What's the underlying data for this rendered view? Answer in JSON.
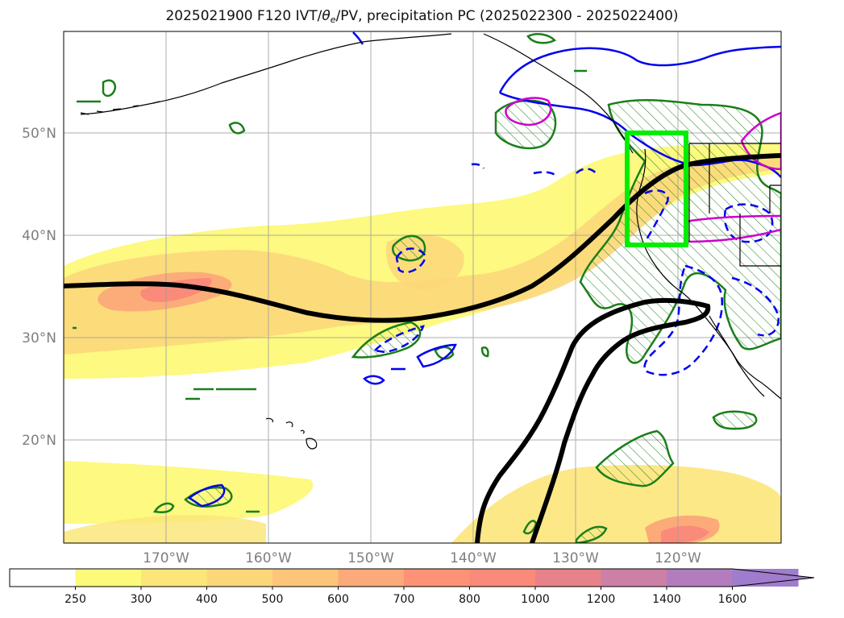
{
  "title": {
    "prefix": "2025021900 F120 IVT/",
    "theta": "θ",
    "theta_sub": "e",
    "suffix": "/PV, precipitation PC (2025022300 - 2025022400)"
  },
  "map": {
    "lat_labels": [
      "50°N",
      "40°N",
      "30°N",
      "20°N"
    ],
    "lon_labels": [
      "170°W",
      "160°W",
      "150°W",
      "140°W",
      "130°W",
      "120°W"
    ],
    "lat_values": [
      50,
      40,
      30,
      20
    ],
    "lon_values": [
      -170,
      -160,
      -150,
      -140,
      -130,
      -120
    ],
    "extent": {
      "lon_min": -180,
      "lon_max": -110,
      "lat_min": 10,
      "lat_max": 60
    },
    "gridlines": true,
    "colors": {
      "grid": "#a0a0a0",
      "coast": "#000000",
      "pv_contour": "#000000",
      "precip_contour": "#1a7f1a",
      "theta_solid": "#0000ee",
      "theta_dashed": "#0000ee",
      "magenta": "#cc00cc",
      "highlight_box": "#00ee00",
      "tick_label": "#7f7f7f"
    }
  },
  "colorbar": {
    "ticks": [
      "250",
      "300",
      "400",
      "500",
      "600",
      "700",
      "800",
      "1000",
      "1200",
      "1400",
      "1600"
    ],
    "colors": [
      "#ffffff",
      "#fdf97a",
      "#fce67a",
      "#fcd77a",
      "#fdc57a",
      "#fcaa79",
      "#fd9277",
      "#fa8a79",
      "#e8828a",
      "#cc80a6",
      "#b27cbf",
      "#a07ccc"
    ],
    "extend": "max"
  }
}
